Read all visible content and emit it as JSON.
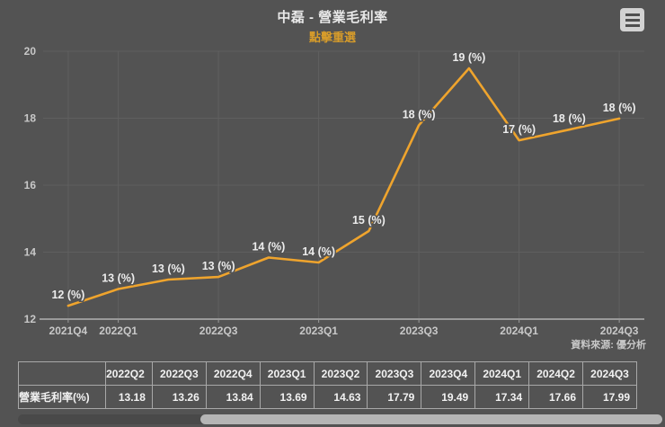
{
  "header": {
    "title": "中磊 - 營業毛利率",
    "subtitle": "點擊重選",
    "menu_icon": "hamburger-menu-icon"
  },
  "colors": {
    "background": "#535353",
    "line": "#efa42d",
    "subtitle": "#d79c2a",
    "grid": "#5f5f5f",
    "axis_label": "#c8c8c8",
    "axis_line": "#9a9a9a",
    "data_label": "#ececec",
    "title": "#e8e8e8",
    "table_border": "#a8a8a8",
    "scrollbar_thumb": "#b5b5b5"
  },
  "chart_data": {
    "type": "line",
    "title": "中磊 - 營業毛利率",
    "series_name": "營業毛利率(%)",
    "categories": [
      "2021Q4",
      "2022Q1",
      "2022Q2",
      "2022Q3",
      "2022Q4",
      "2023Q1",
      "2023Q2",
      "2023Q3",
      "2023Q4",
      "2024Q1",
      "2024Q2",
      "2024Q3"
    ],
    "values": [
      12.4,
      12.9,
      13.18,
      13.26,
      13.84,
      13.69,
      14.63,
      17.79,
      19.49,
      17.34,
      17.66,
      17.99
    ],
    "point_labels": [
      "12 (%)",
      "13 (%)",
      "13 (%)",
      "13 (%)",
      "14 (%)",
      "14 (%)",
      "15 (%)",
      "18 (%)",
      "19 (%)",
      "17 (%)",
      "18 (%)",
      "18 (%)"
    ],
    "x_tick_labels": [
      "2021Q4",
      "2022Q1",
      "2022Q3",
      "2023Q1",
      "2023Q3",
      "2024Q1",
      "2024Q3"
    ],
    "x_tick_indices": [
      0,
      1,
      3,
      5,
      7,
      9,
      11
    ],
    "y_ticks": [
      12,
      14,
      16,
      18,
      20
    ],
    "ylim": [
      12,
      20
    ],
    "grid": true,
    "legend": "none",
    "line_color": "#efa42d"
  },
  "footer": {
    "source": "資料來源: 優分析"
  },
  "table": {
    "row_label": "營業毛利率(%)",
    "columns": [
      "2022Q2",
      "2022Q3",
      "2022Q4",
      "2023Q1",
      "2023Q2",
      "2023Q3",
      "2023Q4",
      "2024Q1",
      "2024Q2",
      "2024Q3"
    ],
    "values": [
      "13.18",
      "13.26",
      "13.84",
      "13.69",
      "14.63",
      "17.79",
      "19.49",
      "17.34",
      "17.66",
      "17.99"
    ]
  }
}
